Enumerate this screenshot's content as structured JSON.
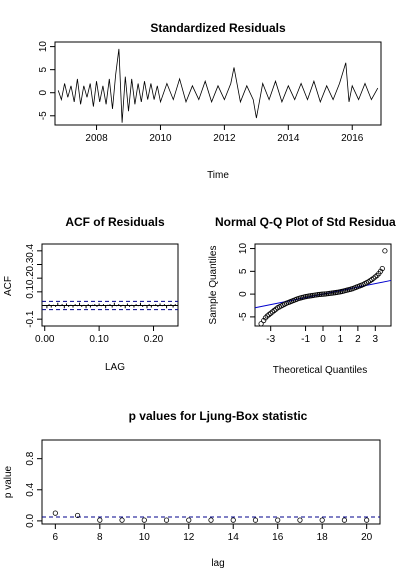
{
  "chart_data": [
    {
      "type": "line",
      "title": "Standardized Residuals",
      "xlabel": "Time",
      "ylabel": "",
      "xlim": [
        2006.7,
        2016.9
      ],
      "ylim": [
        -7,
        11
      ],
      "x_ticks": [
        2008,
        2010,
        2012,
        2014,
        2016
      ],
      "y_ticks": [
        -5,
        0,
        5,
        10
      ],
      "series": [
        {
          "x": [
            2006.8,
            2006.9,
            2007.0,
            2007.1,
            2007.2,
            2007.3,
            2007.4,
            2007.5,
            2007.6,
            2007.7,
            2007.8,
            2007.9,
            2008.0,
            2008.1,
            2008.2,
            2008.3,
            2008.4,
            2008.5,
            2008.6,
            2008.7,
            2008.8,
            2008.9,
            2009.0,
            2009.1,
            2009.2,
            2009.3,
            2009.4,
            2009.5,
            2009.6,
            2009.7,
            2009.8,
            2009.9,
            2010.0,
            2010.2,
            2010.4,
            2010.6,
            2010.8,
            2011.0,
            2011.2,
            2011.4,
            2011.6,
            2011.8,
            2012.0,
            2012.2,
            2012.3,
            2012.5,
            2012.7,
            2012.9,
            2013.0,
            2013.2,
            2013.4,
            2013.6,
            2013.8,
            2014.0,
            2014.2,
            2014.4,
            2014.6,
            2014.8,
            2015.0,
            2015.2,
            2015.4,
            2015.6,
            2015.8,
            2015.9,
            2016.0,
            2016.2,
            2016.4,
            2016.6,
            2016.8
          ],
          "values": [
            0.5,
            -1.5,
            2.0,
            -1.0,
            1.5,
            -2.0,
            3.0,
            -2.5,
            1.5,
            -1.0,
            2.0,
            -3.0,
            2.5,
            -2.0,
            1.5,
            -2.5,
            3.0,
            -3.5,
            4.0,
            9.5,
            -6.5,
            3.5,
            -4.0,
            3.0,
            -2.5,
            2.0,
            -2.0,
            2.5,
            -1.5,
            2.0,
            -1.5,
            1.5,
            -2.0,
            2.0,
            -1.5,
            3.0,
            -2.0,
            1.5,
            -1.5,
            2.5,
            -2.0,
            1.5,
            -1.5,
            2.0,
            5.5,
            -2.0,
            1.5,
            -1.5,
            -5.5,
            2.0,
            -1.5,
            2.5,
            -2.0,
            1.5,
            -1.5,
            2.0,
            -1.5,
            2.5,
            -2.0,
            1.5,
            -1.5,
            2.0,
            6.5,
            -2.0,
            1.5,
            -1.5,
            2.0,
            -1.5,
            1.0
          ]
        }
      ]
    },
    {
      "type": "bar",
      "title": "ACF of Residuals",
      "xlabel": "LAG",
      "ylabel": "ACF",
      "xlim": [
        -0.005,
        0.245
      ],
      "ylim": [
        -0.15,
        0.45
      ],
      "x_ticks": [
        "0.00",
        "0.10",
        "0.20"
      ],
      "y_ticks": [
        "-0.1",
        "0.1",
        "0.2",
        "0.3",
        "0.4"
      ],
      "confidence_bounds": [
        -0.03,
        0.03
      ],
      "lags": [
        0.004,
        0.008,
        0.012,
        0.016,
        0.02,
        0.024,
        0.028,
        0.032,
        0.036,
        0.04,
        0.044,
        0.048,
        0.052,
        0.056,
        0.06,
        0.064,
        0.068,
        0.072,
        0.076,
        0.08,
        0.084,
        0.088,
        0.092,
        0.096,
        0.1,
        0.104,
        0.108,
        0.112,
        0.116,
        0.12,
        0.124,
        0.128,
        0.132,
        0.136,
        0.14,
        0.144,
        0.148,
        0.152,
        0.156,
        0.16,
        0.164,
        0.168,
        0.172,
        0.176,
        0.18,
        0.184,
        0.188,
        0.192,
        0.196,
        0.2,
        0.204,
        0.208,
        0.212,
        0.216,
        0.22,
        0.224,
        0.228,
        0.232,
        0.236,
        0.24
      ],
      "values": [
        -0.02,
        0.01,
        -0.015,
        0.005,
        -0.01,
        0.02,
        -0.005,
        0.01,
        -0.02,
        0.015,
        -0.01,
        0.005,
        -0.015,
        0.01,
        -0.005,
        0.02,
        -0.01,
        0.005,
        -0.02,
        0.01,
        -0.015,
        0.005,
        0.01,
        -0.01,
        0.015,
        -0.005,
        0.01,
        -0.02,
        0.005,
        0.01,
        -0.015,
        0.02,
        -0.005,
        0.01,
        -0.01,
        0.005,
        -0.02,
        0.015,
        -0.01,
        0.005,
        -0.015,
        0.01,
        -0.005,
        0.02,
        -0.01,
        0.005,
        -0.02,
        0.01,
        -0.015,
        0.005,
        0.01,
        -0.01,
        0.015,
        -0.005,
        0.01,
        -0.02,
        0.005,
        0.01,
        -0.015,
        0.01
      ]
    },
    {
      "type": "scatter",
      "title": "Normal Q-Q Plot of Std Residua",
      "xlabel": "Theoretical Quantiles",
      "ylabel": "Sample Quantiles",
      "xlim": [
        -3.9,
        3.9
      ],
      "ylim": [
        -7,
        11
      ],
      "x_ticks": [
        -3,
        -1,
        0,
        1,
        2,
        3
      ],
      "y_ticks": [
        -5,
        0,
        5,
        10
      ],
      "reference_line": {
        "x": [
          -3.9,
          3.9
        ],
        "y": [
          -3.0,
          3.0
        ]
      },
      "x": [
        -3.55,
        -3.4,
        -3.3,
        -3.2,
        -3.1,
        -3.0,
        -2.9,
        -2.8,
        -2.7,
        -2.6,
        -2.5,
        -2.4,
        -2.3,
        -2.2,
        -2.1,
        -2.0,
        -1.9,
        -1.8,
        -1.7,
        -1.6,
        -1.5,
        -1.4,
        -1.3,
        -1.2,
        -1.1,
        -1.0,
        -0.9,
        -0.8,
        -0.7,
        -0.6,
        -0.5,
        -0.4,
        -0.3,
        -0.2,
        -0.1,
        0.0,
        0.1,
        0.2,
        0.3,
        0.4,
        0.5,
        0.6,
        0.7,
        0.8,
        0.9,
        1.0,
        1.1,
        1.2,
        1.3,
        1.4,
        1.5,
        1.6,
        1.7,
        1.8,
        1.9,
        2.0,
        2.1,
        2.2,
        2.3,
        2.4,
        2.5,
        2.6,
        2.7,
        2.8,
        2.9,
        3.0,
        3.1,
        3.2,
        3.3,
        3.4,
        3.55
      ],
      "y": [
        -6.5,
        -5.8,
        -5.2,
        -4.8,
        -4.5,
        -4.2,
        -3.9,
        -3.6,
        -3.3,
        -3.0,
        -2.8,
        -2.6,
        -2.4,
        -2.2,
        -2.0,
        -1.85,
        -1.7,
        -1.55,
        -1.4,
        -1.25,
        -1.1,
        -0.95,
        -0.85,
        -0.75,
        -0.65,
        -0.55,
        -0.48,
        -0.42,
        -0.36,
        -0.3,
        -0.24,
        -0.18,
        -0.12,
        -0.07,
        -0.03,
        0.0,
        0.03,
        0.07,
        0.12,
        0.17,
        0.22,
        0.27,
        0.32,
        0.38,
        0.45,
        0.52,
        0.6,
        0.7,
        0.8,
        0.9,
        1.0,
        1.1,
        1.2,
        1.35,
        1.5,
        1.65,
        1.8,
        1.95,
        2.1,
        2.3,
        2.5,
        2.7,
        2.95,
        3.2,
        3.5,
        3.8,
        4.1,
        4.5,
        5.0,
        5.6,
        9.5
      ]
    },
    {
      "type": "scatter",
      "title": "p values for Ljung-Box statistic",
      "xlabel": "lag",
      "ylabel": "p value",
      "xlim": [
        5.4,
        20.6
      ],
      "ylim": [
        -0.04,
        1.04
      ],
      "x_ticks": [
        6,
        8,
        10,
        12,
        14,
        16,
        18,
        20
      ],
      "y_ticks": [
        "0.0",
        "0.4",
        "0.8"
      ],
      "significance_level": 0.05,
      "x": [
        6,
        7,
        8,
        9,
        10,
        11,
        12,
        13,
        14,
        15,
        16,
        17,
        18,
        19,
        20
      ],
      "y": [
        0.1,
        0.07,
        0.01,
        0.01,
        0.01,
        0.01,
        0.01,
        0.01,
        0.01,
        0.01,
        0.01,
        0.01,
        0.01,
        0.01,
        0.01
      ]
    }
  ],
  "colors": {
    "series": "#000000",
    "bounds": "#00008b",
    "ref_line": "#0000cd",
    "axis": "#000000"
  }
}
